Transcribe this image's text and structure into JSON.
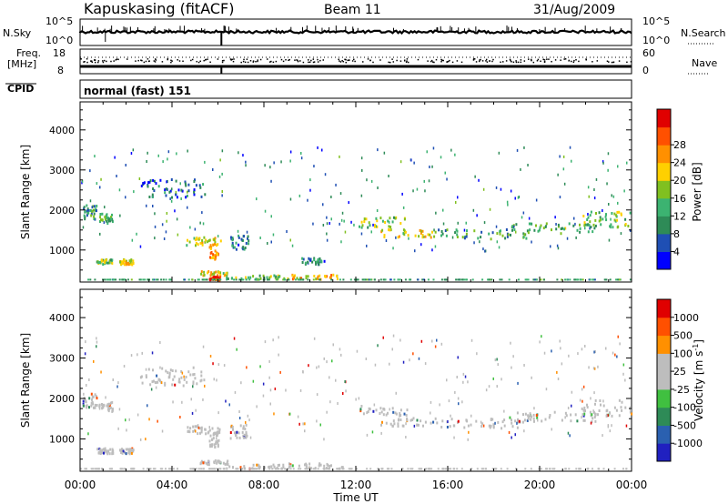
{
  "header": {
    "station": "Kapuskasing (fitACF)",
    "beam": "Beam 11",
    "date": "31/Aug/2009"
  },
  "strip_panel": {
    "nsky_label": "N.Sky",
    "nsky_ticks": [
      "10^5",
      "10^0"
    ],
    "nsearch_label": "N.Search",
    "nsearch_ticks": [
      "10^5",
      "10^0"
    ],
    "freq_label": "Freq.",
    "freq_unit": "[MHz]",
    "freq_ticks": [
      "18",
      "8"
    ],
    "nave_label": "Nave",
    "nave_ticks": [
      "60",
      "0"
    ],
    "cpid_label": "CPID",
    "cpid_value": "normal (fast) 151"
  },
  "x_axis": {
    "title": "Time UT",
    "tick_labels": [
      "00:00",
      "04:00",
      "08:00",
      "12:00",
      "16:00",
      "20:00",
      "00:00"
    ]
  },
  "colors": {
    "power_scale": [
      "#0000ff",
      "#1f4fb4",
      "#2e8b57",
      "#3cb371",
      "#80c020",
      "#ffd000",
      "#ff9000",
      "#ff5000",
      "#e00000"
    ],
    "velocity_scale": [
      "#2020c0",
      "#2a60b0",
      "#2e8b57",
      "#40c040",
      "#bdbdbd",
      "#bdbdbd",
      "#ff9000",
      "#ff5000",
      "#e00000"
    ]
  },
  "chart_data": [
    {
      "type": "heatmap",
      "name": "power",
      "ylabel": "Slant Range [km]",
      "xlabel": "Time UT",
      "xlim": [
        0,
        24
      ],
      "ylim": [
        200,
        4700
      ],
      "y_tick_labels": [
        "1000",
        "2000",
        "3000",
        "4000"
      ],
      "colorbar": {
        "label": "Power [dB]",
        "ticks": [
          "4",
          "8",
          "12",
          "16",
          "20",
          "24",
          "28"
        ],
        "range": [
          0,
          30
        ]
      },
      "echo_regions": [
        {
          "t0": 0.1,
          "t1": 0.7,
          "r0": 1750,
          "r1": 2100,
          "value": 10
        },
        {
          "t0": 0.8,
          "t1": 1.4,
          "r0": 1650,
          "r1": 1900,
          "value": 12
        },
        {
          "t0": 0.7,
          "t1": 1.4,
          "r0": 620,
          "r1": 750,
          "value": 14
        },
        {
          "t0": 1.7,
          "t1": 2.3,
          "r0": 620,
          "r1": 750,
          "value": 18
        },
        {
          "t0": 2.6,
          "t1": 5.4,
          "r0": 2300,
          "r1": 2750,
          "value": 6
        },
        {
          "t0": 4.6,
          "t1": 6.1,
          "r0": 1100,
          "r1": 1300,
          "value": 16
        },
        {
          "t0": 5.6,
          "t1": 6.0,
          "r0": 750,
          "r1": 1150,
          "value": 22
        },
        {
          "t0": 6.5,
          "t1": 7.3,
          "r0": 1000,
          "r1": 1350,
          "value": 8
        },
        {
          "t0": 5.2,
          "t1": 6.4,
          "r0": 350,
          "r1": 450,
          "value": 18
        },
        {
          "t0": 5.6,
          "t1": 6.1,
          "r0": 230,
          "r1": 320,
          "value": 28
        },
        {
          "t0": 6.3,
          "t1": 8.9,
          "r0": 250,
          "r1": 350,
          "value": 14
        },
        {
          "t0": 9.0,
          "t1": 11.4,
          "r0": 250,
          "r1": 380,
          "value": 20
        },
        {
          "t0": 9.6,
          "t1": 10.6,
          "r0": 620,
          "r1": 780,
          "value": 8
        },
        {
          "t0": 12.1,
          "t1": 14.2,
          "r0": 1550,
          "r1": 1800,
          "value": 14
        },
        {
          "t0": 13.0,
          "t1": 15.4,
          "r0": 1300,
          "r1": 1500,
          "value": 18
        },
        {
          "t0": 15.4,
          "t1": 19.4,
          "r0": 1250,
          "r1": 1500,
          "value": 10
        },
        {
          "t0": 18.4,
          "t1": 22.5,
          "r0": 1400,
          "r1": 1650,
          "value": 12
        },
        {
          "t0": 21.8,
          "t1": 24.0,
          "r0": 1550,
          "r1": 1950,
          "value": 14
        }
      ]
    },
    {
      "type": "heatmap",
      "name": "velocity",
      "ylabel": "Slant Range [km]",
      "xlabel": "Time UT",
      "xlim": [
        0,
        24
      ],
      "ylim": [
        200,
        4700
      ],
      "y_tick_labels": [
        "1000",
        "2000",
        "3000",
        "4000"
      ],
      "colorbar": {
        "label": "Velocity [m s^-1]",
        "ticks": [
          "1000",
          "500",
          "100",
          "25",
          "-25",
          "-100",
          "-500",
          "-1000"
        ],
        "range": [
          -1000,
          1000
        ]
      },
      "echo_regions": [
        {
          "t0": 0.1,
          "t1": 0.7,
          "r0": 1750,
          "r1": 2100,
          "value": 0
        },
        {
          "t0": 0.8,
          "t1": 1.4,
          "r0": 1650,
          "r1": 1900,
          "value": 0
        },
        {
          "t0": 0.7,
          "t1": 1.4,
          "r0": 620,
          "r1": 750,
          "value": 0
        },
        {
          "t0": 1.7,
          "t1": 2.3,
          "r0": 620,
          "r1": 750,
          "value": 0
        },
        {
          "t0": 2.6,
          "t1": 5.4,
          "r0": 2300,
          "r1": 2750,
          "value": 0
        },
        {
          "t0": 4.6,
          "t1": 6.1,
          "r0": 1100,
          "r1": 1300,
          "value": 0
        },
        {
          "t0": 5.6,
          "t1": 6.0,
          "r0": 750,
          "r1": 1150,
          "value": 0
        },
        {
          "t0": 6.5,
          "t1": 7.3,
          "r0": 1000,
          "r1": 1350,
          "value": 0
        },
        {
          "t0": 5.2,
          "t1": 6.4,
          "r0": 350,
          "r1": 450,
          "value": 0
        },
        {
          "t0": 6.3,
          "t1": 8.9,
          "r0": 250,
          "r1": 350,
          "value": 0
        },
        {
          "t0": 9.0,
          "t1": 11.4,
          "r0": 250,
          "r1": 380,
          "value": 0
        },
        {
          "t0": 12.1,
          "t1": 14.2,
          "r0": 1550,
          "r1": 1800,
          "value": 0
        },
        {
          "t0": 13.0,
          "t1": 15.4,
          "r0": 1300,
          "r1": 1500,
          "value": 0
        },
        {
          "t0": 15.4,
          "t1": 19.4,
          "r0": 1250,
          "r1": 1500,
          "value": 0
        },
        {
          "t0": 18.4,
          "t1": 22.5,
          "r0": 1400,
          "r1": 1650,
          "value": 0
        },
        {
          "t0": 21.8,
          "t1": 24.0,
          "r0": 1550,
          "r1": 1950,
          "value": 0
        }
      ]
    }
  ]
}
